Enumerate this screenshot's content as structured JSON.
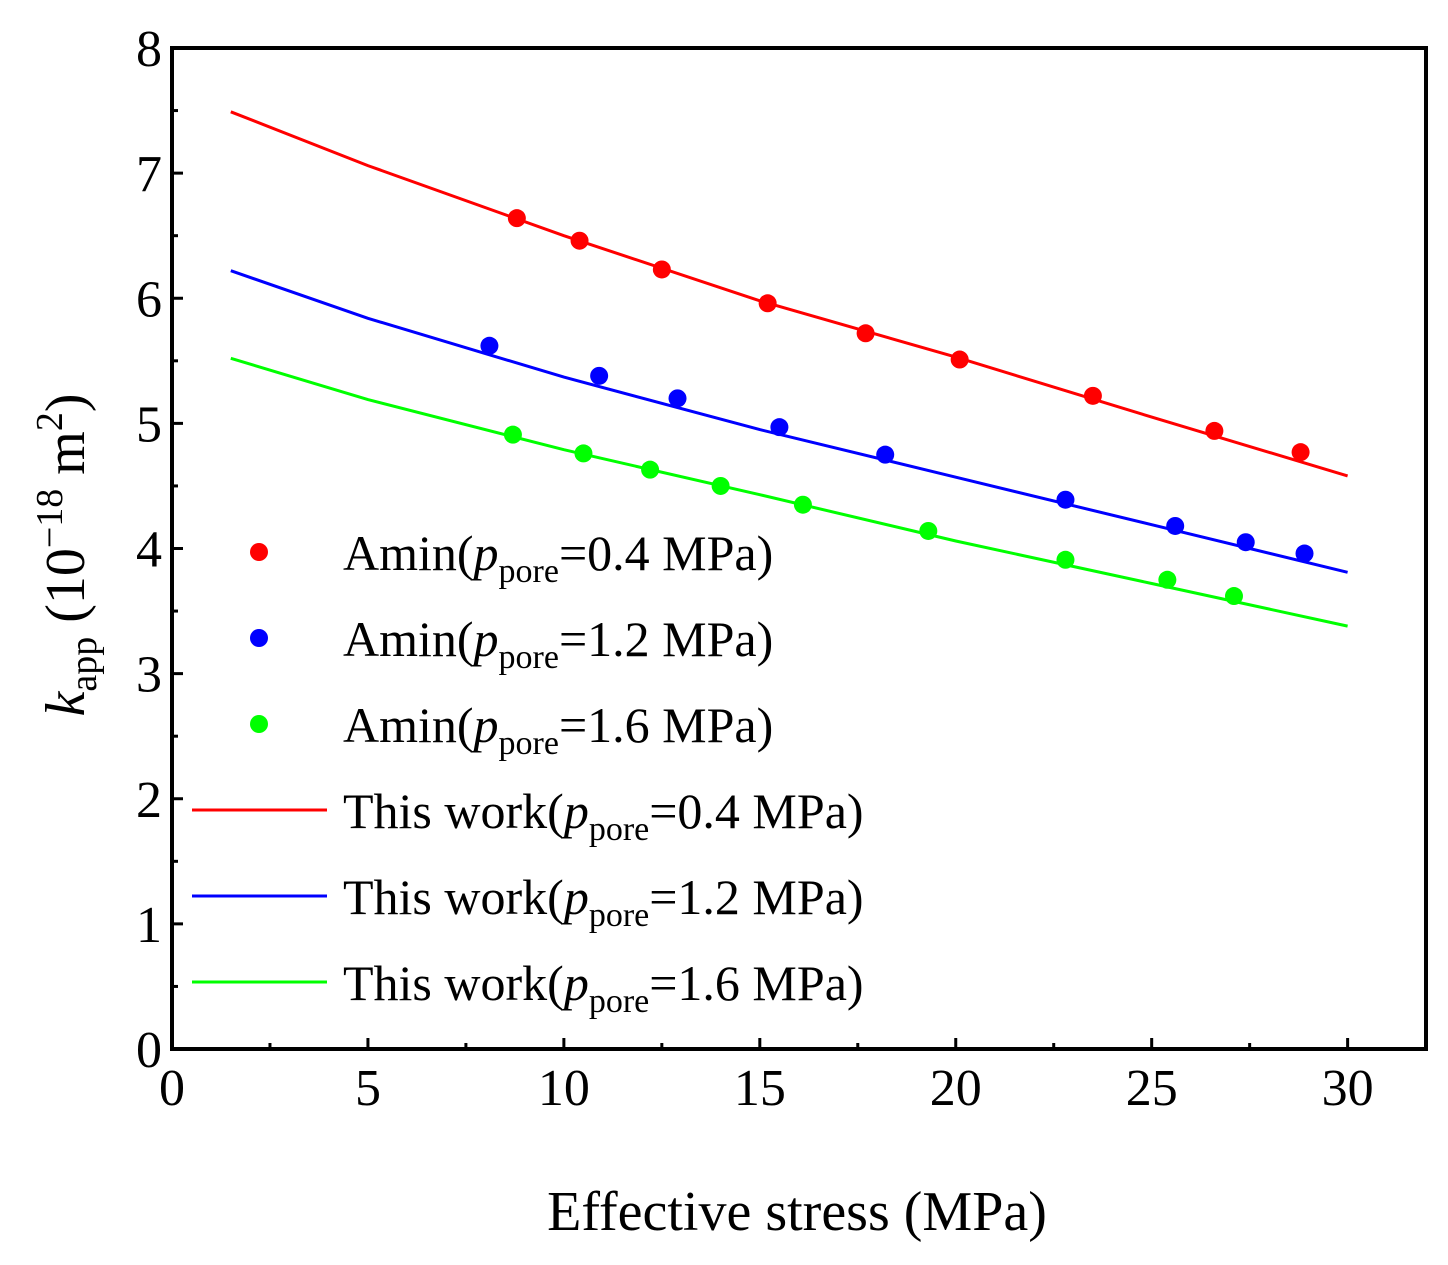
{
  "chart_data": {
    "type": "scatter",
    "title": "",
    "xlabel": "Effective stress (MPa)",
    "ylabel": {
      "k": "k",
      "k_sub": "app",
      "unit_open": " (10",
      "exp": "−18",
      "unit_mid": " m",
      "sq": "2",
      "unit_close": ")"
    },
    "xlim": [
      0,
      32
    ],
    "ylim": [
      0,
      8
    ],
    "xticks": [
      0,
      5,
      10,
      15,
      20,
      25,
      30
    ],
    "yticks": [
      0,
      1,
      2,
      3,
      4,
      5,
      6,
      7,
      8
    ],
    "grid": false,
    "legend_position": "lower-left",
    "series": [
      {
        "name": "Amin(p_pore=0.4 MPa)",
        "kind": "scatter",
        "color": "#ff0000",
        "legend": {
          "prefix": "Amin(",
          "p": "p",
          "sub": "pore",
          "suffix": "=0.4 MPa)"
        },
        "x": [
          8.8,
          10.4,
          12.5,
          15.2,
          17.7,
          20.1,
          23.5,
          26.6,
          28.8
        ],
        "y": [
          6.64,
          6.46,
          6.23,
          5.96,
          5.72,
          5.51,
          5.22,
          4.94,
          4.77
        ]
      },
      {
        "name": "Amin(p_pore=1.2 MPa)",
        "kind": "scatter",
        "color": "#0000ff",
        "legend": {
          "prefix": "Amin(",
          "p": "p",
          "sub": "pore",
          "suffix": "=1.2 MPa)"
        },
        "x": [
          8.1,
          10.9,
          12.9,
          15.5,
          18.2,
          22.8,
          25.6,
          27.4,
          28.9
        ],
        "y": [
          5.62,
          5.38,
          5.2,
          4.97,
          4.75,
          4.39,
          4.18,
          4.05,
          3.96
        ]
      },
      {
        "name": "Amin(p_pore=1.6 MPa)",
        "kind": "scatter",
        "color": "#00ff00",
        "legend": {
          "prefix": "Amin(",
          "p": "p",
          "sub": "pore",
          "suffix": "=1.6 MPa)"
        },
        "x": [
          8.7,
          10.5,
          12.2,
          14.0,
          16.1,
          19.3,
          22.8,
          25.4,
          27.1
        ],
        "y": [
          4.91,
          4.76,
          4.63,
          4.5,
          4.35,
          4.14,
          3.91,
          3.75,
          3.62
        ]
      },
      {
        "name": "This work(p_pore=0.4 MPa)",
        "kind": "line",
        "color": "#ff0000",
        "legend": {
          "prefix": "This work(",
          "p": "p",
          "sub": "pore",
          "suffix": "=0.4 MPa)"
        },
        "x": [
          1.5,
          5,
          10,
          15,
          20,
          25,
          30
        ],
        "y": [
          7.49,
          7.06,
          6.5,
          5.98,
          5.53,
          5.05,
          4.58
        ]
      },
      {
        "name": "This work(p_pore=1.2 MPa)",
        "kind": "line",
        "color": "#0000ff",
        "legend": {
          "prefix": "This work(",
          "p": "p",
          "sub": "pore",
          "suffix": "=1.2 MPa)"
        },
        "x": [
          1.5,
          5,
          10,
          15,
          20,
          25,
          30
        ],
        "y": [
          6.22,
          5.84,
          5.37,
          4.95,
          4.57,
          4.19,
          3.81
        ]
      },
      {
        "name": "This work(p_pore=1.6 MPa)",
        "kind": "line",
        "color": "#00ff00",
        "legend": {
          "prefix": "This work(",
          "p": "p",
          "sub": "pore",
          "suffix": "=1.6 MPa)"
        },
        "x": [
          1.5,
          5,
          10,
          15,
          20,
          25,
          30
        ],
        "y": [
          5.52,
          5.19,
          4.79,
          4.43,
          4.06,
          3.72,
          3.38
        ]
      }
    ]
  }
}
